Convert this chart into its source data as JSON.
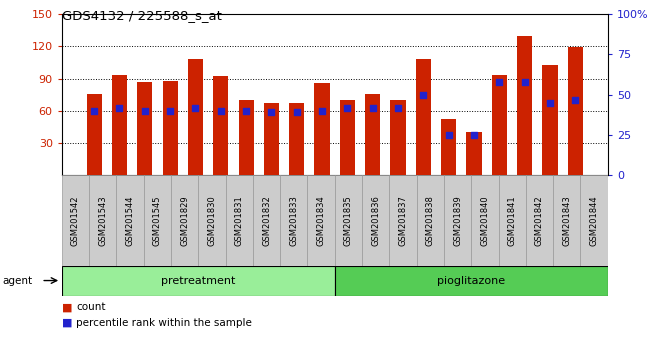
{
  "title": "GDS4132 / 225588_s_at",
  "samples": [
    "GSM201542",
    "GSM201543",
    "GSM201544",
    "GSM201545",
    "GSM201829",
    "GSM201830",
    "GSM201831",
    "GSM201832",
    "GSM201833",
    "GSM201834",
    "GSM201835",
    "GSM201836",
    "GSM201837",
    "GSM201838",
    "GSM201839",
    "GSM201840",
    "GSM201841",
    "GSM201842",
    "GSM201843",
    "GSM201844"
  ],
  "counts": [
    76,
    93,
    87,
    88,
    108,
    92,
    70,
    67,
    67,
    86,
    70,
    76,
    70,
    108,
    52,
    40,
    93,
    130,
    103,
    119
  ],
  "percentiles_right": [
    40,
    42,
    40,
    40,
    42,
    40,
    40,
    39,
    39,
    40,
    42,
    42,
    42,
    50,
    25,
    25,
    58,
    58,
    45,
    47
  ],
  "pretreatment_count": 10,
  "pioglitazone_count": 10,
  "ylim_left": [
    0,
    150
  ],
  "ylim_right": [
    0,
    100
  ],
  "yticks_left": [
    30,
    60,
    90,
    120,
    150
  ],
  "yticks_right": [
    0,
    25,
    50,
    75,
    100
  ],
  "bar_color": "#CC2200",
  "dot_color": "#2222CC",
  "pretreatment_color": "#99EE99",
  "pioglitazone_color": "#55CC55",
  "cell_bg_color": "#CCCCCC",
  "cell_edge_color": "#999999",
  "legend_count_label": "count",
  "legend_pct_label": "percentile rank within the sample"
}
